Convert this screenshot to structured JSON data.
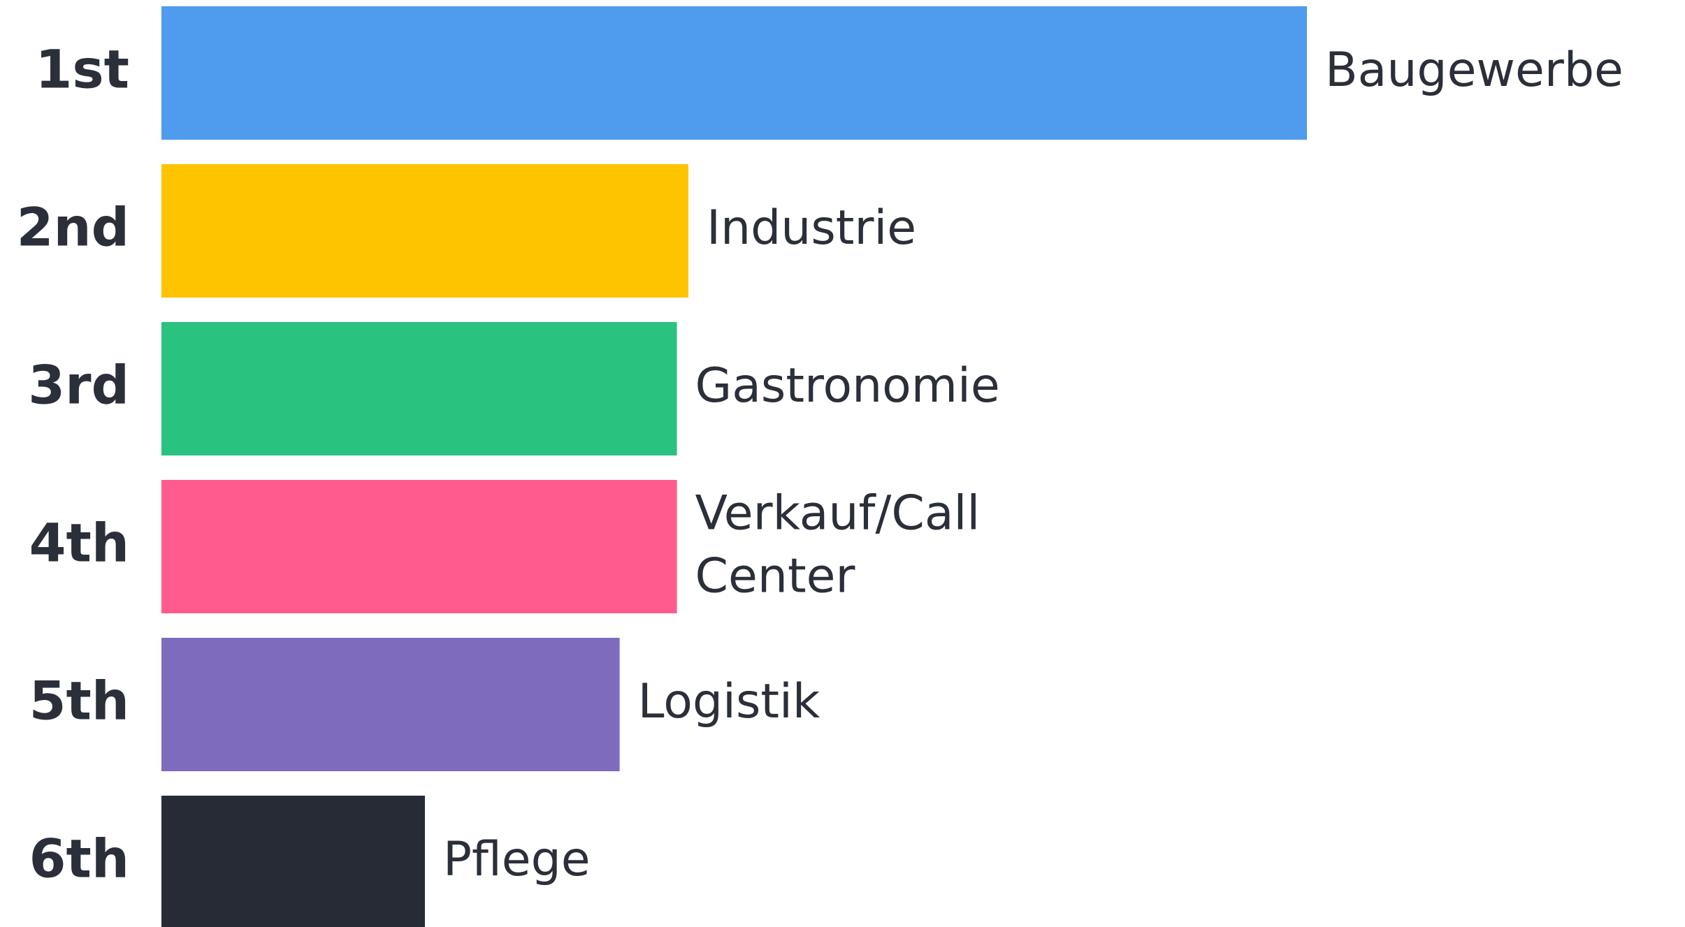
{
  "chart_data": {
    "type": "bar",
    "orientation": "horizontal",
    "categories": [
      "1st",
      "2nd",
      "3rd",
      "4th",
      "5th",
      "6th"
    ],
    "labels": [
      "Baugewerbe",
      "Industrie",
      "Gastronomie",
      "Verkauf/Call Center",
      "Logistik",
      "Pflege"
    ],
    "values": [
      100,
      46,
      45,
      45,
      40,
      23
    ],
    "colors": [
      "#4f9bed",
      "#fec400",
      "#29c27f",
      "#ff5b8e",
      "#7e6bbe",
      "#262b36"
    ],
    "xlim": [
      0,
      100
    ]
  }
}
